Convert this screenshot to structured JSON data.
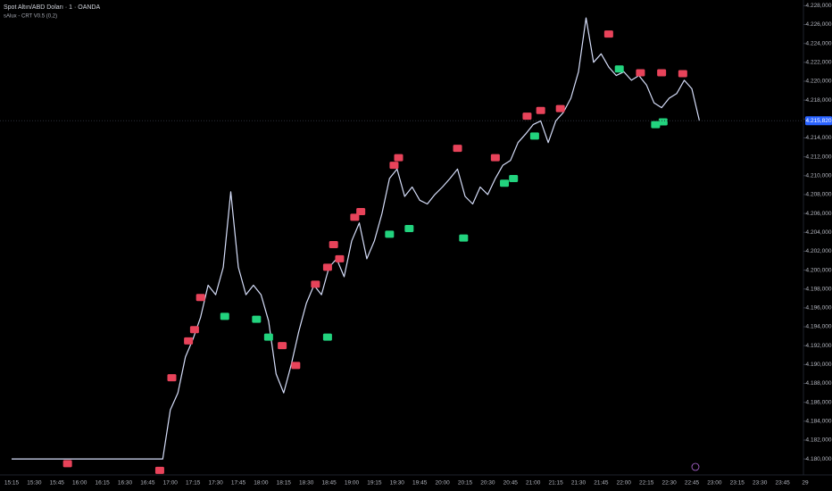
{
  "chart_data": {
    "type": "line",
    "title": "Spot Altın/ABD Doları · 1 · OANDA",
    "subtitle": "sAlux - CRT V0.5 (0,2)",
    "categories": [
      "15:15",
      "15:30",
      "15:45",
      "16:00",
      "16:15",
      "16:30",
      "16:45",
      "17:00",
      "17:15",
      "17:30",
      "17:45",
      "18:00",
      "18:15",
      "18:30",
      "18:45",
      "19:00",
      "19:15",
      "19:30",
      "19:45",
      "20:00",
      "20:15",
      "20:30",
      "20:45",
      "21:00",
      "21:15",
      "21:30",
      "21:45",
      "22:00",
      "22:15",
      "22:30",
      "22:45",
      "23:00",
      "23:15",
      "23:30",
      "23:45",
      "29"
    ],
    "x": [
      "15:15",
      "16:55",
      "17:00",
      "17:05",
      "17:10",
      "17:15",
      "17:20",
      "17:25",
      "17:30",
      "17:35",
      "17:40",
      "17:45",
      "17:50",
      "17:55",
      "18:00",
      "18:05",
      "18:10",
      "18:15",
      "18:20",
      "18:25",
      "18:30",
      "18:35",
      "18:40",
      "18:45",
      "18:50",
      "18:55",
      "19:00",
      "19:05",
      "19:10",
      "19:15",
      "19:20",
      "19:25",
      "19:30",
      "19:35",
      "19:40",
      "19:45",
      "19:50",
      "19:55",
      "20:00",
      "20:05",
      "20:10",
      "20:15",
      "20:20",
      "20:25",
      "20:30",
      "20:35",
      "20:40",
      "20:45",
      "20:50",
      "20:55",
      "21:00",
      "21:05",
      "21:10",
      "21:15",
      "21:20",
      "21:25",
      "21:30",
      "21:35",
      "21:40",
      "21:45",
      "21:50",
      "21:55",
      "22:00",
      "22:05",
      "22:10",
      "22:15",
      "22:20",
      "22:25",
      "22:30",
      "22:35",
      "22:40",
      "22:45",
      "22:50"
    ],
    "values": [
      4180,
      4180,
      4185.2,
      4187,
      4190.8,
      4192.7,
      4195,
      4198.4,
      4197.4,
      4200.3,
      4208.3,
      4200.3,
      4197.4,
      4198.4,
      4197.4,
      4194.6,
      4189,
      4187,
      4190,
      4193.5,
      4196.5,
      4198.4,
      4197.4,
      4200.3,
      4201.2,
      4199.3,
      4203.1,
      4205,
      4201.2,
      4203.1,
      4206,
      4209.7,
      4210.7,
      4207.8,
      4208.8,
      4207.4,
      4207,
      4208,
      4208.8,
      4209.7,
      4210.7,
      4207.8,
      4207,
      4208.8,
      4208,
      4209.7,
      4211.1,
      4211.6,
      4213.5,
      4214.4,
      4215.4,
      4215.8,
      4213.5,
      4215.8,
      4216.7,
      4218.2,
      4221,
      4226.7,
      4222,
      4222.9,
      4221.5,
      4220.6,
      4221,
      4220.1,
      4220.6,
      4219.6,
      4217.7,
      4217.2,
      4218.2,
      4218.7,
      4220.1,
      4219.2,
      4215.8
    ],
    "color": "#d6defa",
    "ylim": [
      4178.5,
      4228.6
    ],
    "yticks": [
      {
        "value": 4180,
        "label": "4.180,000"
      },
      {
        "value": 4182,
        "label": "4.182,000"
      },
      {
        "value": 4184,
        "label": "4.184,000"
      },
      {
        "value": 4186,
        "label": "4.186,000"
      },
      {
        "value": 4188,
        "label": "4.188,000"
      },
      {
        "value": 4190,
        "label": "4.190,000"
      },
      {
        "value": 4192,
        "label": "4.192,000"
      },
      {
        "value": 4194,
        "label": "4.194,000"
      },
      {
        "value": 4196,
        "label": "4.196,000"
      },
      {
        "value": 4198,
        "label": "4.198,000"
      },
      {
        "value": 4200,
        "label": "4.200,000"
      },
      {
        "value": 4202,
        "label": "4.202,000"
      },
      {
        "value": 4204,
        "label": "4.204,000"
      },
      {
        "value": 4206,
        "label": "4.206,000"
      },
      {
        "value": 4208,
        "label": "4.208,000"
      },
      {
        "value": 4210,
        "label": "4.210,000"
      },
      {
        "value": 4212,
        "label": "4.212,000"
      },
      {
        "value": 4214,
        "label": "4.214,000"
      },
      {
        "value": 4216,
        "label": "4.216,000"
      },
      {
        "value": 4218,
        "label": "4.218,000"
      },
      {
        "value": 4220,
        "label": "4.220,000"
      },
      {
        "value": 4222,
        "label": "4.222,000"
      },
      {
        "value": 4224,
        "label": "4.224,000"
      },
      {
        "value": 4226,
        "label": "4.226,000"
      },
      {
        "value": 4228,
        "label": "4.228,000"
      }
    ],
    "last_price": {
      "value": 4215.82,
      "label": "4.215,820",
      "color": "#2962ff"
    },
    "grid": false,
    "markers": [
      {
        "x": "15:52",
        "y": 4179.5,
        "color": "#e8435a"
      },
      {
        "x": "16:53",
        "y": 4178.8,
        "color": "#e8435a"
      },
      {
        "x": "17:01",
        "y": 4188.6,
        "color": "#e8435a"
      },
      {
        "x": "17:12",
        "y": 4192.5,
        "color": "#e8435a"
      },
      {
        "x": "17:16",
        "y": 4193.7,
        "color": "#e8435a"
      },
      {
        "x": "17:20",
        "y": 4197.1,
        "color": "#e8435a"
      },
      {
        "x": "18:14",
        "y": 4192.0,
        "color": "#e8435a"
      },
      {
        "x": "18:23",
        "y": 4189.9,
        "color": "#e8435a"
      },
      {
        "x": "18:36",
        "y": 4198.5,
        "color": "#e8435a"
      },
      {
        "x": "18:44",
        "y": 4200.3,
        "color": "#e8435a"
      },
      {
        "x": "18:52",
        "y": 4201.2,
        "color": "#e8435a"
      },
      {
        "x": "18:48",
        "y": 4202.7,
        "color": "#e8435a"
      },
      {
        "x": "19:02",
        "y": 4205.6,
        "color": "#e8435a"
      },
      {
        "x": "19:06",
        "y": 4206.2,
        "color": "#e8435a"
      },
      {
        "x": "19:28",
        "y": 4211.1,
        "color": "#e8435a"
      },
      {
        "x": "19:31",
        "y": 4211.9,
        "color": "#e8435a"
      },
      {
        "x": "20:10",
        "y": 4212.9,
        "color": "#e8435a"
      },
      {
        "x": "20:35",
        "y": 4211.9,
        "color": "#e8435a"
      },
      {
        "x": "20:56",
        "y": 4216.3,
        "color": "#e8435a"
      },
      {
        "x": "21:05",
        "y": 4216.9,
        "color": "#e8435a"
      },
      {
        "x": "21:18",
        "y": 4217.1,
        "color": "#e8435a"
      },
      {
        "x": "21:50",
        "y": 4225.0,
        "color": "#e8435a"
      },
      {
        "x": "22:11",
        "y": 4220.9,
        "color": "#e8435a"
      },
      {
        "x": "22:25",
        "y": 4220.9,
        "color": "#e8435a"
      },
      {
        "x": "22:39",
        "y": 4220.8,
        "color": "#e8435a"
      },
      {
        "x": "17:36",
        "y": 4195.1,
        "color": "#22d37e"
      },
      {
        "x": "17:57",
        "y": 4194.8,
        "color": "#22d37e"
      },
      {
        "x": "18:05",
        "y": 4192.9,
        "color": "#22d37e"
      },
      {
        "x": "18:44",
        "y": 4192.9,
        "color": "#22d37e"
      },
      {
        "x": "19:25",
        "y": 4203.8,
        "color": "#22d37e"
      },
      {
        "x": "19:38",
        "y": 4204.4,
        "color": "#22d37e"
      },
      {
        "x": "20:14",
        "y": 4203.4,
        "color": "#22d37e"
      },
      {
        "x": "20:41",
        "y": 4209.2,
        "color": "#22d37e"
      },
      {
        "x": "20:47",
        "y": 4209.7,
        "color": "#22d37e"
      },
      {
        "x": "21:01",
        "y": 4214.2,
        "color": "#22d37e"
      },
      {
        "x": "21:57",
        "y": 4221.3,
        "color": "#22d37e"
      },
      {
        "x": "22:21",
        "y": 4215.4,
        "color": "#22d37e"
      },
      {
        "x": "22:26",
        "y": 4215.7,
        "color": "#22d37e"
      }
    ]
  }
}
